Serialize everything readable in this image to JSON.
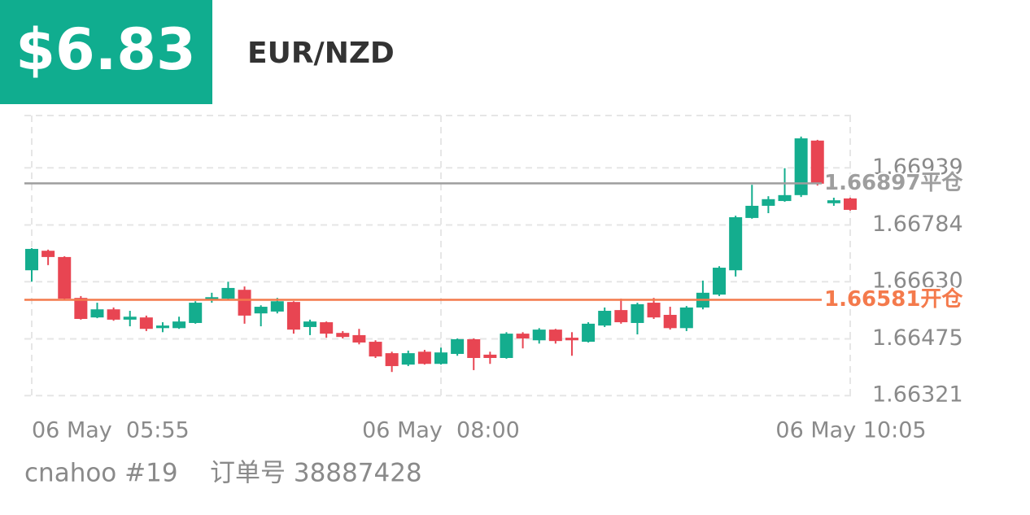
{
  "header": {
    "price": "$6.83",
    "pair": "EUR/NZD"
  },
  "chart_data": {
    "type": "candlestick",
    "categories": [
      "06 May  05:55",
      null,
      null,
      null,
      null,
      null,
      null,
      null,
      null,
      null,
      null,
      null,
      null,
      null,
      null,
      null,
      null,
      null,
      null,
      null,
      null,
      null,
      null,
      null,
      null,
      "06 May  08:00",
      null,
      null,
      null,
      null,
      null,
      null,
      null,
      null,
      null,
      null,
      null,
      null,
      null,
      null,
      null,
      null,
      null,
      null,
      null,
      null,
      null,
      null,
      null,
      null,
      "06 May 10:05"
    ],
    "open": [
      1.66661,
      1.66714,
      1.66697,
      1.66586,
      1.66533,
      1.66555,
      1.66527,
      1.66533,
      1.66504,
      1.66504,
      1.66518,
      1.66582,
      1.66584,
      1.66608,
      1.66544,
      1.66549,
      1.66575,
      1.66507,
      1.6652,
      1.66491,
      1.66485,
      1.66467,
      1.66436,
      1.66405,
      1.6644,
      1.66407,
      1.66434,
      1.66474,
      1.66432,
      1.66423,
      1.66489,
      1.66471,
      1.665,
      1.66478,
      1.66467,
      1.66511,
      1.66553,
      1.66518,
      1.66573,
      1.6654,
      1.66504,
      1.6656,
      1.66595,
      1.66661,
      1.66803,
      1.66836,
      1.66849,
      1.66865,
      1.67013,
      1.66843,
      1.66856
    ],
    "high": [
      1.66721,
      1.66717,
      1.66699,
      1.66591,
      1.66573,
      1.6656,
      1.66551,
      1.66538,
      1.6652,
      1.66535,
      1.66577,
      1.666,
      1.6663,
      1.66617,
      1.66566,
      1.66586,
      1.66577,
      1.66527,
      1.66522,
      1.66496,
      1.66502,
      1.66471,
      1.6644,
      1.66443,
      1.66445,
      1.66451,
      1.66476,
      1.66476,
      1.6644,
      1.66493,
      1.66493,
      1.66504,
      1.66502,
      1.66493,
      1.6652,
      1.6656,
      1.66584,
      1.66573,
      1.66586,
      1.66562,
      1.66564,
      1.66633,
      1.66672,
      1.66809,
      1.66893,
      1.66862,
      1.66938,
      1.67024,
      1.67015,
      1.66858,
      1.66858
    ],
    "low": [
      1.6663,
      1.66675,
      1.6658,
      1.66527,
      1.66531,
      1.66524,
      1.66509,
      1.66496,
      1.66493,
      1.66502,
      1.66516,
      1.66573,
      1.66582,
      1.66516,
      1.66509,
      1.66544,
      1.66489,
      1.66485,
      1.66478,
      1.66476,
      1.6646,
      1.66423,
      1.66385,
      1.66401,
      1.66405,
      1.66405,
      1.66429,
      1.6639,
      1.66407,
      1.66421,
      1.66449,
      1.66462,
      1.66462,
      1.66429,
      1.66465,
      1.66507,
      1.66516,
      1.66487,
      1.66529,
      1.665,
      1.66496,
      1.66555,
      1.66591,
      1.66644,
      1.66801,
      1.66816,
      1.66847,
      1.6686,
      1.66891,
      1.66836,
      1.66823
    ],
    "close": [
      1.66719,
      1.66697,
      1.66584,
      1.66529,
      1.66555,
      1.66527,
      1.66535,
      1.66502,
      1.66511,
      1.66522,
      1.66573,
      1.66588,
      1.66613,
      1.66538,
      1.66562,
      1.66577,
      1.665,
      1.66522,
      1.66489,
      1.6648,
      1.66465,
      1.66427,
      1.66401,
      1.66436,
      1.66407,
      1.66438,
      1.66474,
      1.66423,
      1.66423,
      1.66489,
      1.66476,
      1.665,
      1.66469,
      1.66471,
      1.66516,
      1.66551,
      1.6652,
      1.66569,
      1.66533,
      1.66504,
      1.6656,
      1.666,
      1.66668,
      1.66805,
      1.66836,
      1.66854,
      1.66865,
      1.67019,
      1.66896,
      1.66851,
      1.66825
    ],
    "ylim": [
      1.66317,
      1.67081
    ],
    "yticks": [
      1.66321,
      1.66475,
      {
        "value": 1.6663,
        "label": "1.66630"
      },
      1.66784,
      1.66939
    ],
    "grid": true,
    "up_color": "#14ad8e",
    "down_color": "#e84552",
    "price_lines": [
      {
        "value": 1.66897,
        "label": "1.66897平仓",
        "color": "#9e9e9e"
      },
      {
        "value": 1.66581,
        "label": "1.66581开仓",
        "color": "#f47a4c"
      }
    ]
  },
  "footer": {
    "account": "cnahoo #19",
    "order": "订单号 38887428"
  }
}
